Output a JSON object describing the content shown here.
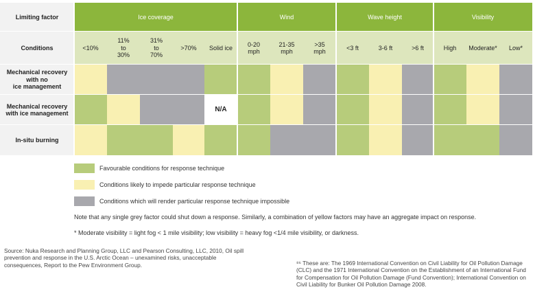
{
  "colors": {
    "favourable": "#b7cc7b",
    "impede": "#f9f0b2",
    "impossible": "#a8a8ad",
    "na": "#ffffff",
    "header": "#8cb63c",
    "header_text": "#ffffff",
    "conditions_bg": "#dde6bd",
    "label_bg": "#f2f2f2"
  },
  "table": {
    "corner_label": "Limiting factor",
    "conditions_label": "Conditions",
    "groups": [
      {
        "label": "Ice coverage",
        "span": 5
      },
      {
        "label": "Wind",
        "span": 3
      },
      {
        "label": "Wave height",
        "span": 3
      },
      {
        "label": "Visibility",
        "span": 3
      }
    ],
    "conditions": [
      "<10%",
      "11%\nto\n30%",
      "31%\nto\n70%",
      ">70%",
      "Solid ice",
      "0-20\nmph",
      "21-35\nmph",
      ">35\nmph",
      "<3 ft",
      "3-6 ft",
      ">6 ft",
      "High",
      "Moderate*",
      "Low*"
    ],
    "rows": [
      {
        "label": "Mechanical recovery\nwith no\nice management",
        "cells": [
          "impede",
          "impossible",
          "impossible",
          "impossible",
          "favourable",
          "favourable",
          "impede",
          "impossible",
          "favourable",
          "impede",
          "impossible",
          "favourable",
          "impede",
          "impossible"
        ]
      },
      {
        "label": "Mechanical recovery\nwith ice management",
        "cells": [
          "favourable",
          "impede",
          "impossible",
          "impossible",
          "na",
          "favourable",
          "impede",
          "impossible",
          "favourable",
          "impede",
          "impossible",
          "favourable",
          "impede",
          "impossible"
        ]
      },
      {
        "label": "In-situ burning",
        "cells": [
          "impede",
          "favourable",
          "favourable",
          "impede",
          "favourable",
          "favourable",
          "impossible",
          "impossible",
          "favourable",
          "impede",
          "impossible",
          "favourable",
          "favourable",
          "impossible"
        ]
      }
    ],
    "na_label": "N/A"
  },
  "legend": [
    {
      "key": "favourable",
      "label": "Favourable conditions for response technique"
    },
    {
      "key": "impede",
      "label": "Conditions likely to impede particular response technique"
    },
    {
      "key": "impossible",
      "label": "Conditions which will render particular response technique impossible"
    }
  ],
  "notes": {
    "grey_note": "Note that any single grey factor could shut down a response. Similarly, a combination of yellow factors may have an aggregate impact on response.",
    "visibility_note": "* Moderate visibility = light fog < 1 mile visibility; low visibility = heavy fog <1/4 mile visibility, or darkness."
  },
  "footer": {
    "source": "Source: Nuka Research and Planning Group, LLC and Pearson Consulting, LLC, 2010, Oil spill prevention and response in the U.S. Arctic Ocean – unexamined risks, unacceptable consequences, Report to the Pew Environment Group.",
    "footnote": "⁸⁶ These are: The 1969 International Convention on Civil Liability for Oil Pollution Damage (CLC) and the 1971 International Convention on the Establishment of an International Fund for Compensation for Oil Pollution Damage (Fund Convention); International Convention on Civil Liability for Bunker Oil Pollution Damage 2008."
  }
}
